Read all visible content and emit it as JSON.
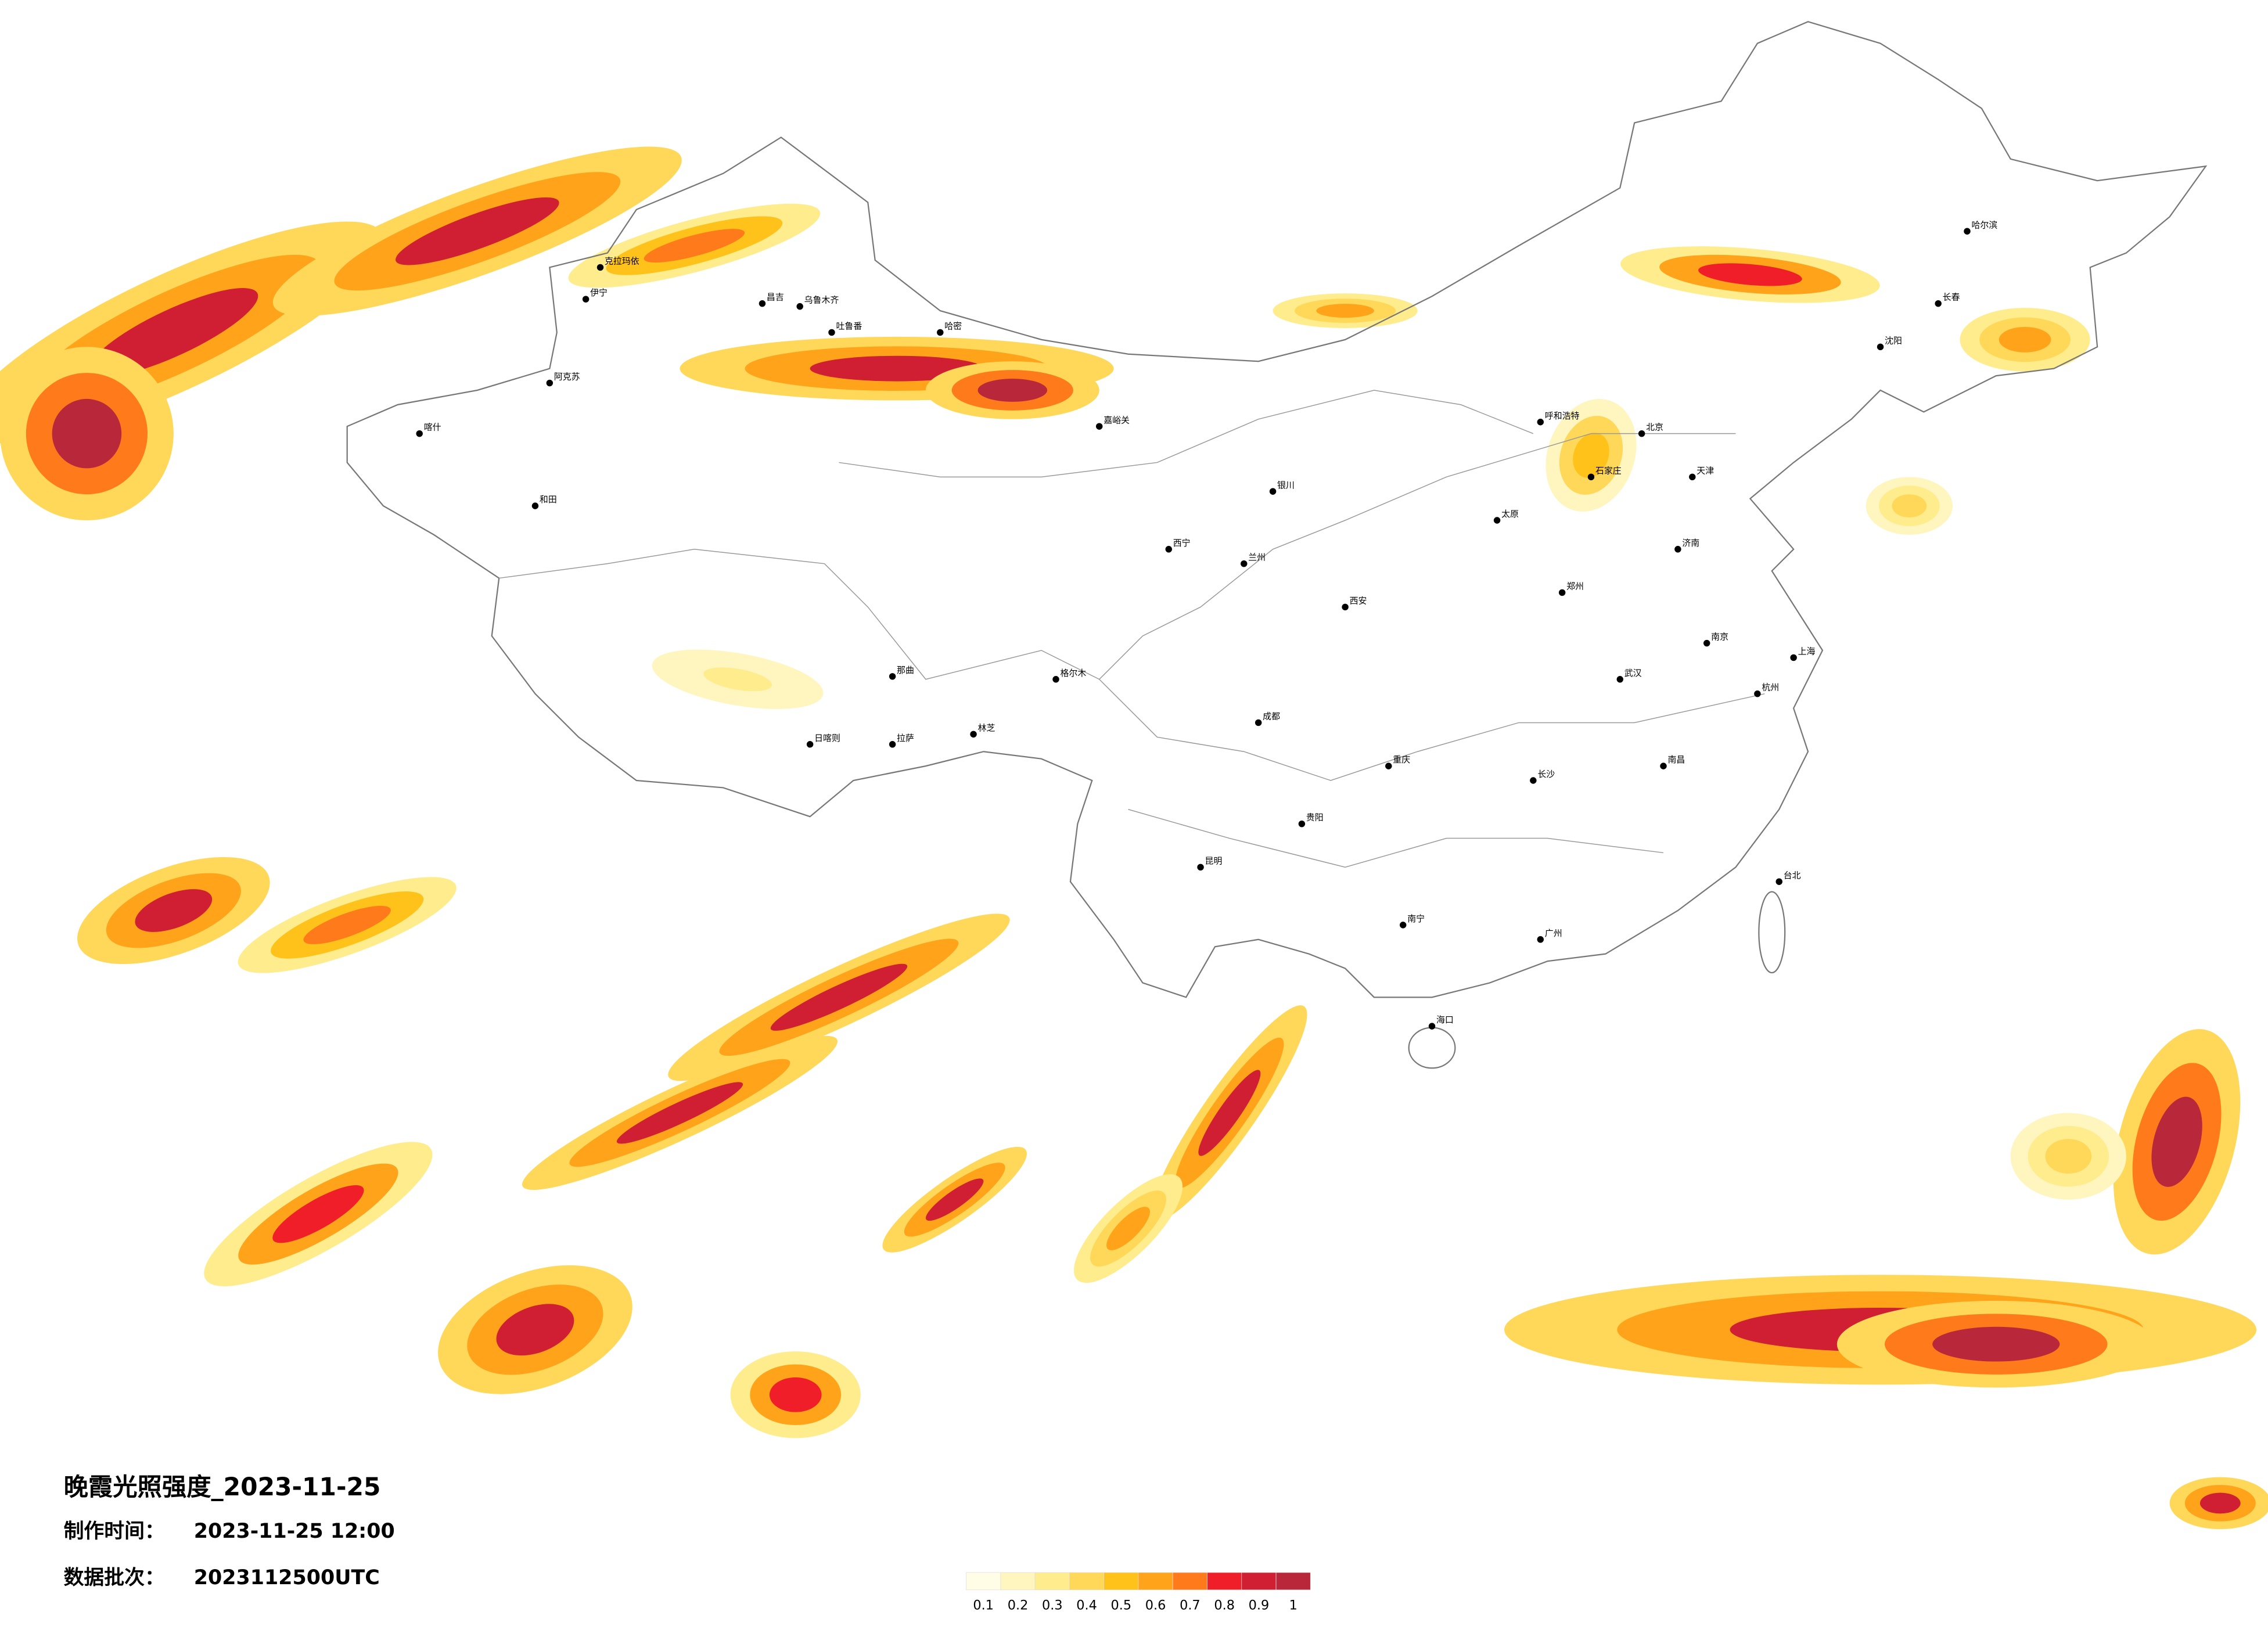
{
  "header": {
    "title": "晚霞光照强度_2023-11-25",
    "made_label": "制作时间：",
    "made_time": "2023-11-25 12:00",
    "batch_label": "数据批次：",
    "batch": "2023112500UTC"
  },
  "legend": {
    "colors": [
      "#fffde6",
      "#fff5bf",
      "#ffec8c",
      "#ffd85a",
      "#ffc21a",
      "#ffa31a",
      "#ff7a1a",
      "#f01e28",
      "#d01e32",
      "#b8283a"
    ],
    "ticks": [
      0.1,
      0.2,
      0.3,
      0.4,
      0.5,
      0.6,
      0.7,
      0.8,
      0.9,
      1
    ]
  },
  "cities": [
    "伊宁",
    "克拉玛依",
    "昌吉",
    "乌鲁木齐",
    "吐鲁番",
    "阿克苏",
    "喀什",
    "和田",
    "哈密",
    "嘉峪关",
    "格尔木",
    "拉萨",
    "日喀则",
    "林芝",
    "那曲",
    "西宁",
    "兰州",
    "银川",
    "呼和浩特",
    "北京",
    "天津",
    "石家庄",
    "太原",
    "郑州",
    "西安",
    "成都",
    "重庆",
    "昆明",
    "贵阳",
    "南宁",
    "广州",
    "海口",
    "长沙",
    "武汉",
    "南昌",
    "杭州",
    "上海",
    "南京",
    "济南",
    "沈阳",
    "长春",
    "哈尔滨",
    "台北"
  ]
}
